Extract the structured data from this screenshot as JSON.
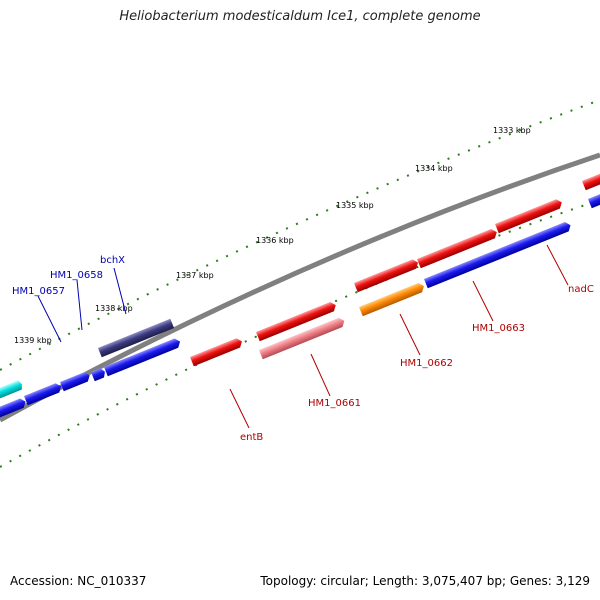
{
  "title": "Heliobacterium modesticaldum Ice1, complete genome",
  "footer": {
    "accession": "Accession: NC_010337",
    "summary": "Topology: circular; Length: 3,075,407 bp; Genes: 3,129"
  },
  "colors": {
    "backbone": "#808080",
    "tick": "#2e7d1e",
    "forward_gene": "#ee1111",
    "reverse_gene": "#1a1aee",
    "orange_gene": "#ff8800",
    "pink_gene": "#ee7f86",
    "navy_gene": "#3b3a7e",
    "cyan_gene": "#00e0e0",
    "forward_label": "#b00000",
    "reverse_label": "#0000b0"
  },
  "ruler_labels": [
    "1333 kbp",
    "1334 kbp",
    "1335 kbp",
    "1336 kbp",
    "1337 kbp",
    "1338 kbp",
    "1339 kbp"
  ],
  "gene_labels": [
    {
      "name": "bchX",
      "strand": "reverse"
    },
    {
      "name": "HM1_0658",
      "strand": "reverse"
    },
    {
      "name": "HM1_0657",
      "strand": "reverse"
    },
    {
      "name": "entB",
      "strand": "forward"
    },
    {
      "name": "HM1_0661",
      "strand": "forward"
    },
    {
      "name": "HM1_0662",
      "strand": "forward"
    },
    {
      "name": "HM1_0663",
      "strand": "forward"
    },
    {
      "name": "nadC",
      "strand": "forward"
    }
  ]
}
